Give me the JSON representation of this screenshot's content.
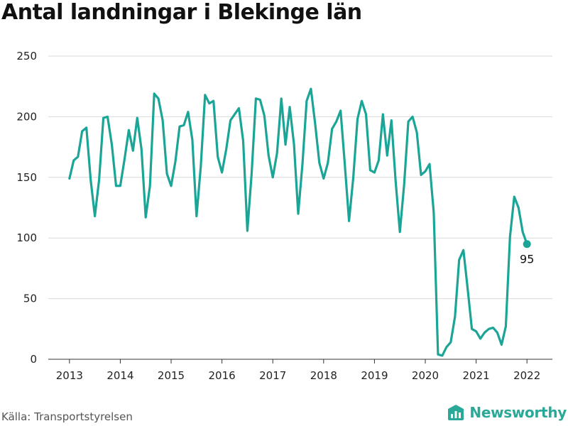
{
  "title": "Antal landningar i Blekinge län",
  "source": "Källa: Transportstyrelsen",
  "brand": {
    "name": "Newsworthy",
    "icon": "newsworthy-logo-icon",
    "color": "#2aa898"
  },
  "end_label": "95",
  "chart_data": {
    "type": "line",
    "title": "Antal landningar i Blekinge län",
    "xlabel": "",
    "ylabel": "",
    "ylim": [
      0,
      250
    ],
    "y_ticks": [
      0,
      50,
      100,
      150,
      200,
      250
    ],
    "xlim": [
      "2012-08",
      "2022-07"
    ],
    "x_ticks": [
      "2013",
      "2014",
      "2015",
      "2016",
      "2017",
      "2018",
      "2019",
      "2020",
      "2021",
      "2022"
    ],
    "grid": "horizontal",
    "line_color": "#1aa596",
    "series": [
      {
        "x": [
          "2013-01",
          "2013-02",
          "2013-03",
          "2013-04",
          "2013-05",
          "2013-06",
          "2013-07",
          "2013-08",
          "2013-09",
          "2013-10",
          "2013-11",
          "2013-12",
          "2014-01",
          "2014-02",
          "2014-03",
          "2014-04",
          "2014-05",
          "2014-06",
          "2014-07",
          "2014-08",
          "2014-09",
          "2014-10",
          "2014-11",
          "2014-12",
          "2015-01",
          "2015-02",
          "2015-03",
          "2015-04",
          "2015-05",
          "2015-06",
          "2015-07",
          "2015-08",
          "2015-09",
          "2015-10",
          "2015-11",
          "2015-12",
          "2016-01",
          "2016-02",
          "2016-03",
          "2016-04",
          "2016-05",
          "2016-06",
          "2016-07",
          "2016-08",
          "2016-09",
          "2016-10",
          "2016-11",
          "2016-12",
          "2017-01",
          "2017-02",
          "2017-03",
          "2017-04",
          "2017-05",
          "2017-06",
          "2017-07",
          "2017-08",
          "2017-09",
          "2017-10",
          "2017-11",
          "2017-12",
          "2018-01",
          "2018-02",
          "2018-03",
          "2018-04",
          "2018-05",
          "2018-06",
          "2018-07",
          "2018-08",
          "2018-09",
          "2018-10",
          "2018-11",
          "2018-12",
          "2019-01",
          "2019-02",
          "2019-03",
          "2019-04",
          "2019-05",
          "2019-06",
          "2019-07",
          "2019-08",
          "2019-09",
          "2019-10",
          "2019-11",
          "2019-12",
          "2020-01",
          "2020-02",
          "2020-03",
          "2020-04",
          "2020-05",
          "2020-06",
          "2020-07",
          "2020-08",
          "2020-09",
          "2020-10",
          "2020-11",
          "2020-12",
          "2021-01",
          "2021-02",
          "2021-03",
          "2021-04",
          "2021-05",
          "2021-06",
          "2021-07",
          "2021-08",
          "2021-09",
          "2021-10",
          "2021-11",
          "2021-12",
          "2022-01"
        ],
        "values": [
          149,
          164,
          167,
          188,
          191,
          148,
          118,
          148,
          199,
          200,
          177,
          143,
          143,
          165,
          189,
          172,
          199,
          173,
          117,
          143,
          219,
          215,
          197,
          153,
          143,
          163,
          192,
          193,
          204,
          181,
          118,
          159,
          218,
          211,
          213,
          167,
          154,
          173,
          197,
          202,
          207,
          180,
          106,
          153,
          215,
          214,
          201,
          168,
          150,
          170,
          215,
          177,
          208,
          177,
          120,
          161,
          213,
          223,
          194,
          162,
          149,
          162,
          190,
          196,
          205,
          161,
          114,
          150,
          198,
          213,
          202,
          156,
          154,
          164,
          202,
          168,
          197,
          147,
          105,
          144,
          196,
          200,
          187,
          152,
          155,
          161,
          121,
          4,
          3,
          10,
          14,
          35,
          82,
          90,
          58,
          25,
          23,
          17,
          22,
          25,
          26,
          22,
          12,
          27,
          101,
          134,
          125,
          105,
          95
        ]
      }
    ]
  }
}
